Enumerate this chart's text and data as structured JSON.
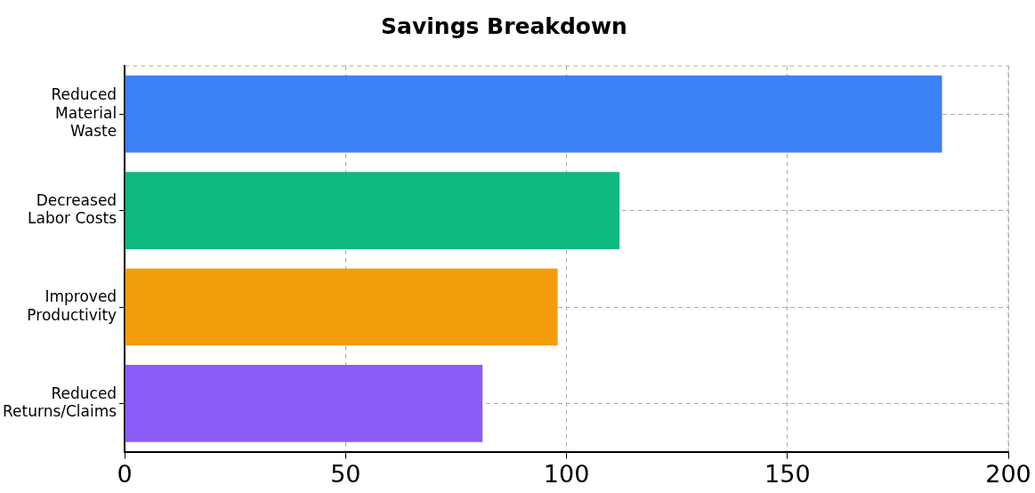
{
  "chart_data": {
    "type": "bar",
    "orientation": "horizontal",
    "title": "Savings Breakdown",
    "categories": [
      "Reduced Material Waste",
      "Decreased Labor Costs",
      "Improved Productivity",
      "Reduced Returns/Claims"
    ],
    "values": [
      185,
      112,
      98,
      81
    ],
    "colors": [
      "#3b82f6",
      "#10b981",
      "#f59e0b",
      "#8b5cf6"
    ],
    "xlim": [
      0,
      200
    ],
    "xticks": [
      0,
      50,
      100,
      150,
      200
    ],
    "grid": true
  }
}
